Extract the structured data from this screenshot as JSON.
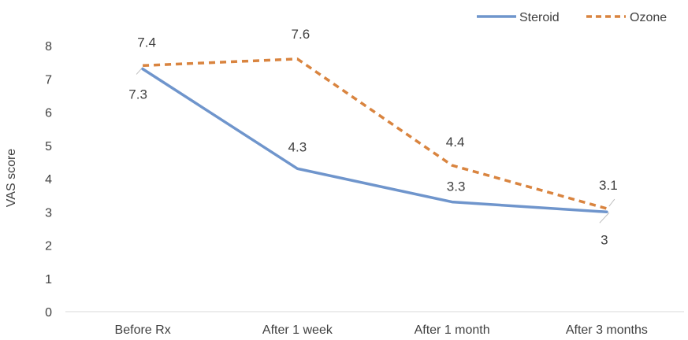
{
  "chart_data": {
    "type": "line",
    "title": "",
    "xlabel": "",
    "ylabel": "VAS score",
    "ylim": [
      0,
      8
    ],
    "y_ticks": [
      "0",
      "1",
      "2",
      "3",
      "4",
      "5",
      "6",
      "7",
      "8"
    ],
    "grid": false,
    "legend_position": "top-right",
    "categories": [
      "Before Rx",
      "After 1 week",
      "After 1 month",
      "After 3 months"
    ],
    "series": [
      {
        "name": "Steroid",
        "values": [
          7.3,
          4.3,
          3.3,
          3
        ],
        "labels": [
          "7.3",
          "4.3",
          "3.3",
          "3"
        ],
        "color": "#6f95cc",
        "style": "solid"
      },
      {
        "name": "Ozone",
        "values": [
          7.4,
          7.6,
          4.4,
          3.1
        ],
        "labels": [
          "7.4",
          "7.6",
          "4.4",
          "3.1"
        ],
        "color": "#d9843f",
        "style": "dashed"
      }
    ]
  }
}
